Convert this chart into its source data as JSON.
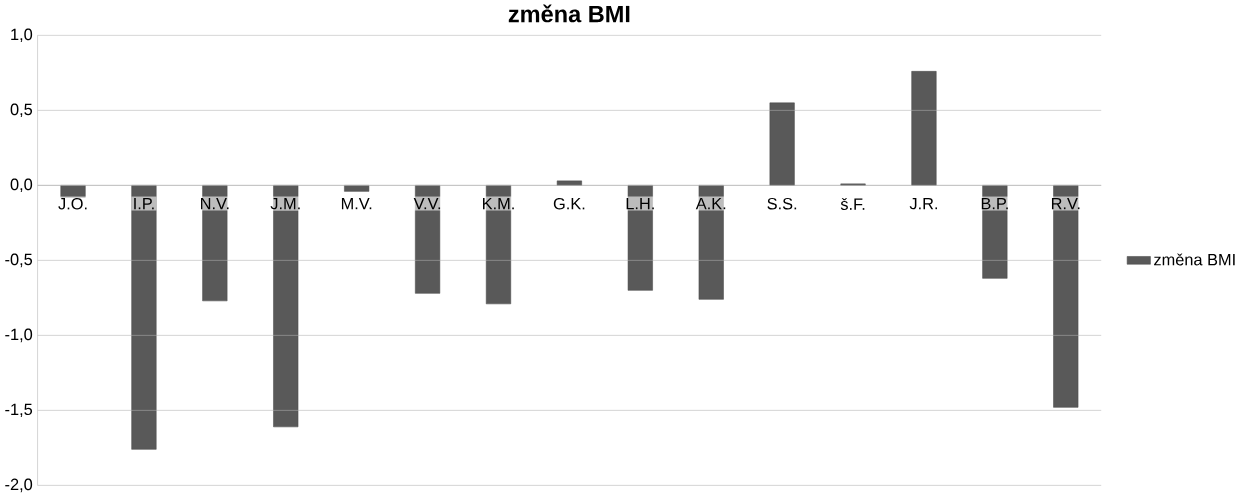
{
  "chart_data": {
    "type": "bar",
    "title": "změna BMI",
    "categories": [
      "J.O.",
      "I.P.",
      "N.V.",
      "J.M.",
      "M.V.",
      "V.V.",
      "K.M.",
      "G.K.",
      "L.H.",
      "A.K.",
      "S.S.",
      "š.F.",
      "J.R.",
      "B.P.",
      "R.V."
    ],
    "series": [
      {
        "name": "změna BMI",
        "color": "#595959",
        "values": [
          -0.08,
          -1.76,
          -0.77,
          -1.61,
          -0.04,
          -0.72,
          -0.79,
          0.03,
          -0.7,
          -0.76,
          0.55,
          0.01,
          0.76,
          -0.62,
          -1.48
        ]
      }
    ],
    "ylim": [
      -2.0,
      1.0
    ],
    "yticks": [
      {
        "value": -2.0,
        "label": "-2,0"
      },
      {
        "value": -1.5,
        "label": "-1,5"
      },
      {
        "value": -1.0,
        "label": "-1,0"
      },
      {
        "value": -0.5,
        "label": "-0,5"
      },
      {
        "value": 0.0,
        "label": "0,0"
      },
      {
        "value": 0.5,
        "label": "0,5"
      },
      {
        "value": 1.0,
        "label": "1,0"
      }
    ],
    "grid": "y",
    "legend": "right"
  }
}
